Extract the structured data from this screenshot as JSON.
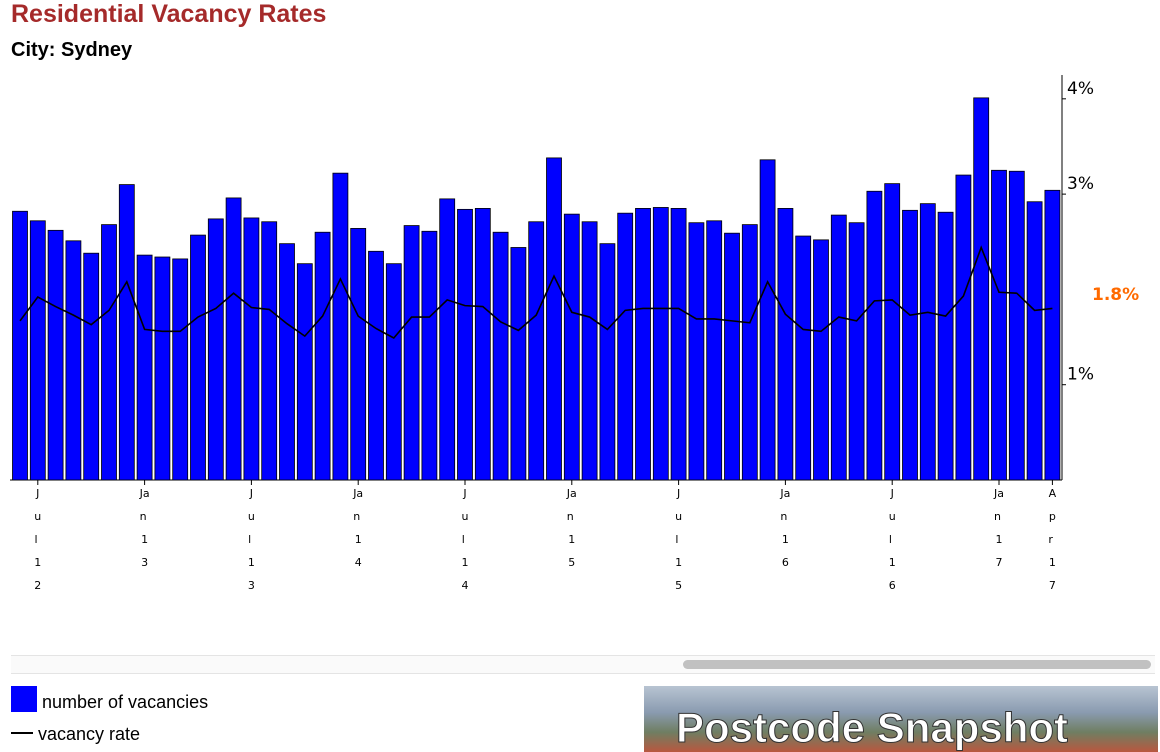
{
  "chart_data": {
    "type": "bar",
    "title": "Residential Vacancy Rates",
    "subtitle": "City: Sydney",
    "categories": [
      null,
      "Jul 12",
      null,
      null,
      null,
      null,
      null,
      "Jan 13",
      null,
      null,
      null,
      null,
      null,
      "Jul 13",
      null,
      null,
      null,
      null,
      null,
      "Jan 14",
      null,
      null,
      null,
      null,
      null,
      "Jul 14",
      null,
      null,
      null,
      null,
      null,
      "Jan 15",
      null,
      null,
      null,
      null,
      null,
      "Jul 15",
      null,
      null,
      null,
      null,
      null,
      "Jan 16",
      null,
      null,
      null,
      null,
      null,
      "Jul 16",
      null,
      null,
      null,
      null,
      null,
      "Jan 17",
      null,
      null,
      "Apr 17"
    ],
    "series": [
      {
        "name": "number of vacancies",
        "type": "bar",
        "color": "#0000ff",
        "values": [
          2.82,
          2.72,
          2.62,
          2.51,
          2.38,
          2.68,
          3.1,
          2.36,
          2.34,
          2.32,
          2.57,
          2.74,
          2.96,
          2.75,
          2.71,
          2.48,
          2.27,
          2.6,
          3.22,
          2.64,
          2.4,
          2.27,
          2.67,
          2.61,
          2.95,
          2.84,
          2.85,
          2.6,
          2.44,
          2.71,
          3.38,
          2.79,
          2.71,
          2.48,
          2.8,
          2.85,
          2.86,
          2.85,
          2.7,
          2.72,
          2.59,
          2.68,
          3.36,
          2.85,
          2.56,
          2.52,
          2.78,
          2.7,
          3.03,
          3.11,
          2.83,
          2.9,
          2.81,
          3.2,
          4.01,
          3.25,
          3.24,
          2.92,
          3.04
        ]
      },
      {
        "name": "vacancy rate",
        "type": "line",
        "color": "#000000",
        "values": [
          1.67,
          1.92,
          1.82,
          1.73,
          1.63,
          1.78,
          2.08,
          1.58,
          1.56,
          1.56,
          1.71,
          1.8,
          1.96,
          1.81,
          1.79,
          1.64,
          1.51,
          1.72,
          2.11,
          1.72,
          1.59,
          1.49,
          1.71,
          1.71,
          1.89,
          1.83,
          1.82,
          1.66,
          1.57,
          1.73,
          2.14,
          1.76,
          1.71,
          1.58,
          1.78,
          1.8,
          1.8,
          1.8,
          1.69,
          1.69,
          1.67,
          1.65,
          2.08,
          1.74,
          1.58,
          1.56,
          1.71,
          1.67,
          1.88,
          1.89,
          1.73,
          1.76,
          1.72,
          1.93,
          2.44,
          1.97,
          1.96,
          1.78,
          1.8
        ]
      }
    ],
    "ylim": [
      0,
      4.25
    ],
    "yticks": [
      {
        "value": 1,
        "label": "1%"
      },
      {
        "value": 3,
        "label": "3%"
      },
      {
        "value": 4,
        "label": "4%"
      }
    ],
    "current_label": "1.8%",
    "current_color": "#ff6a00"
  },
  "banner": {
    "text": "Postcode Snapshot"
  }
}
